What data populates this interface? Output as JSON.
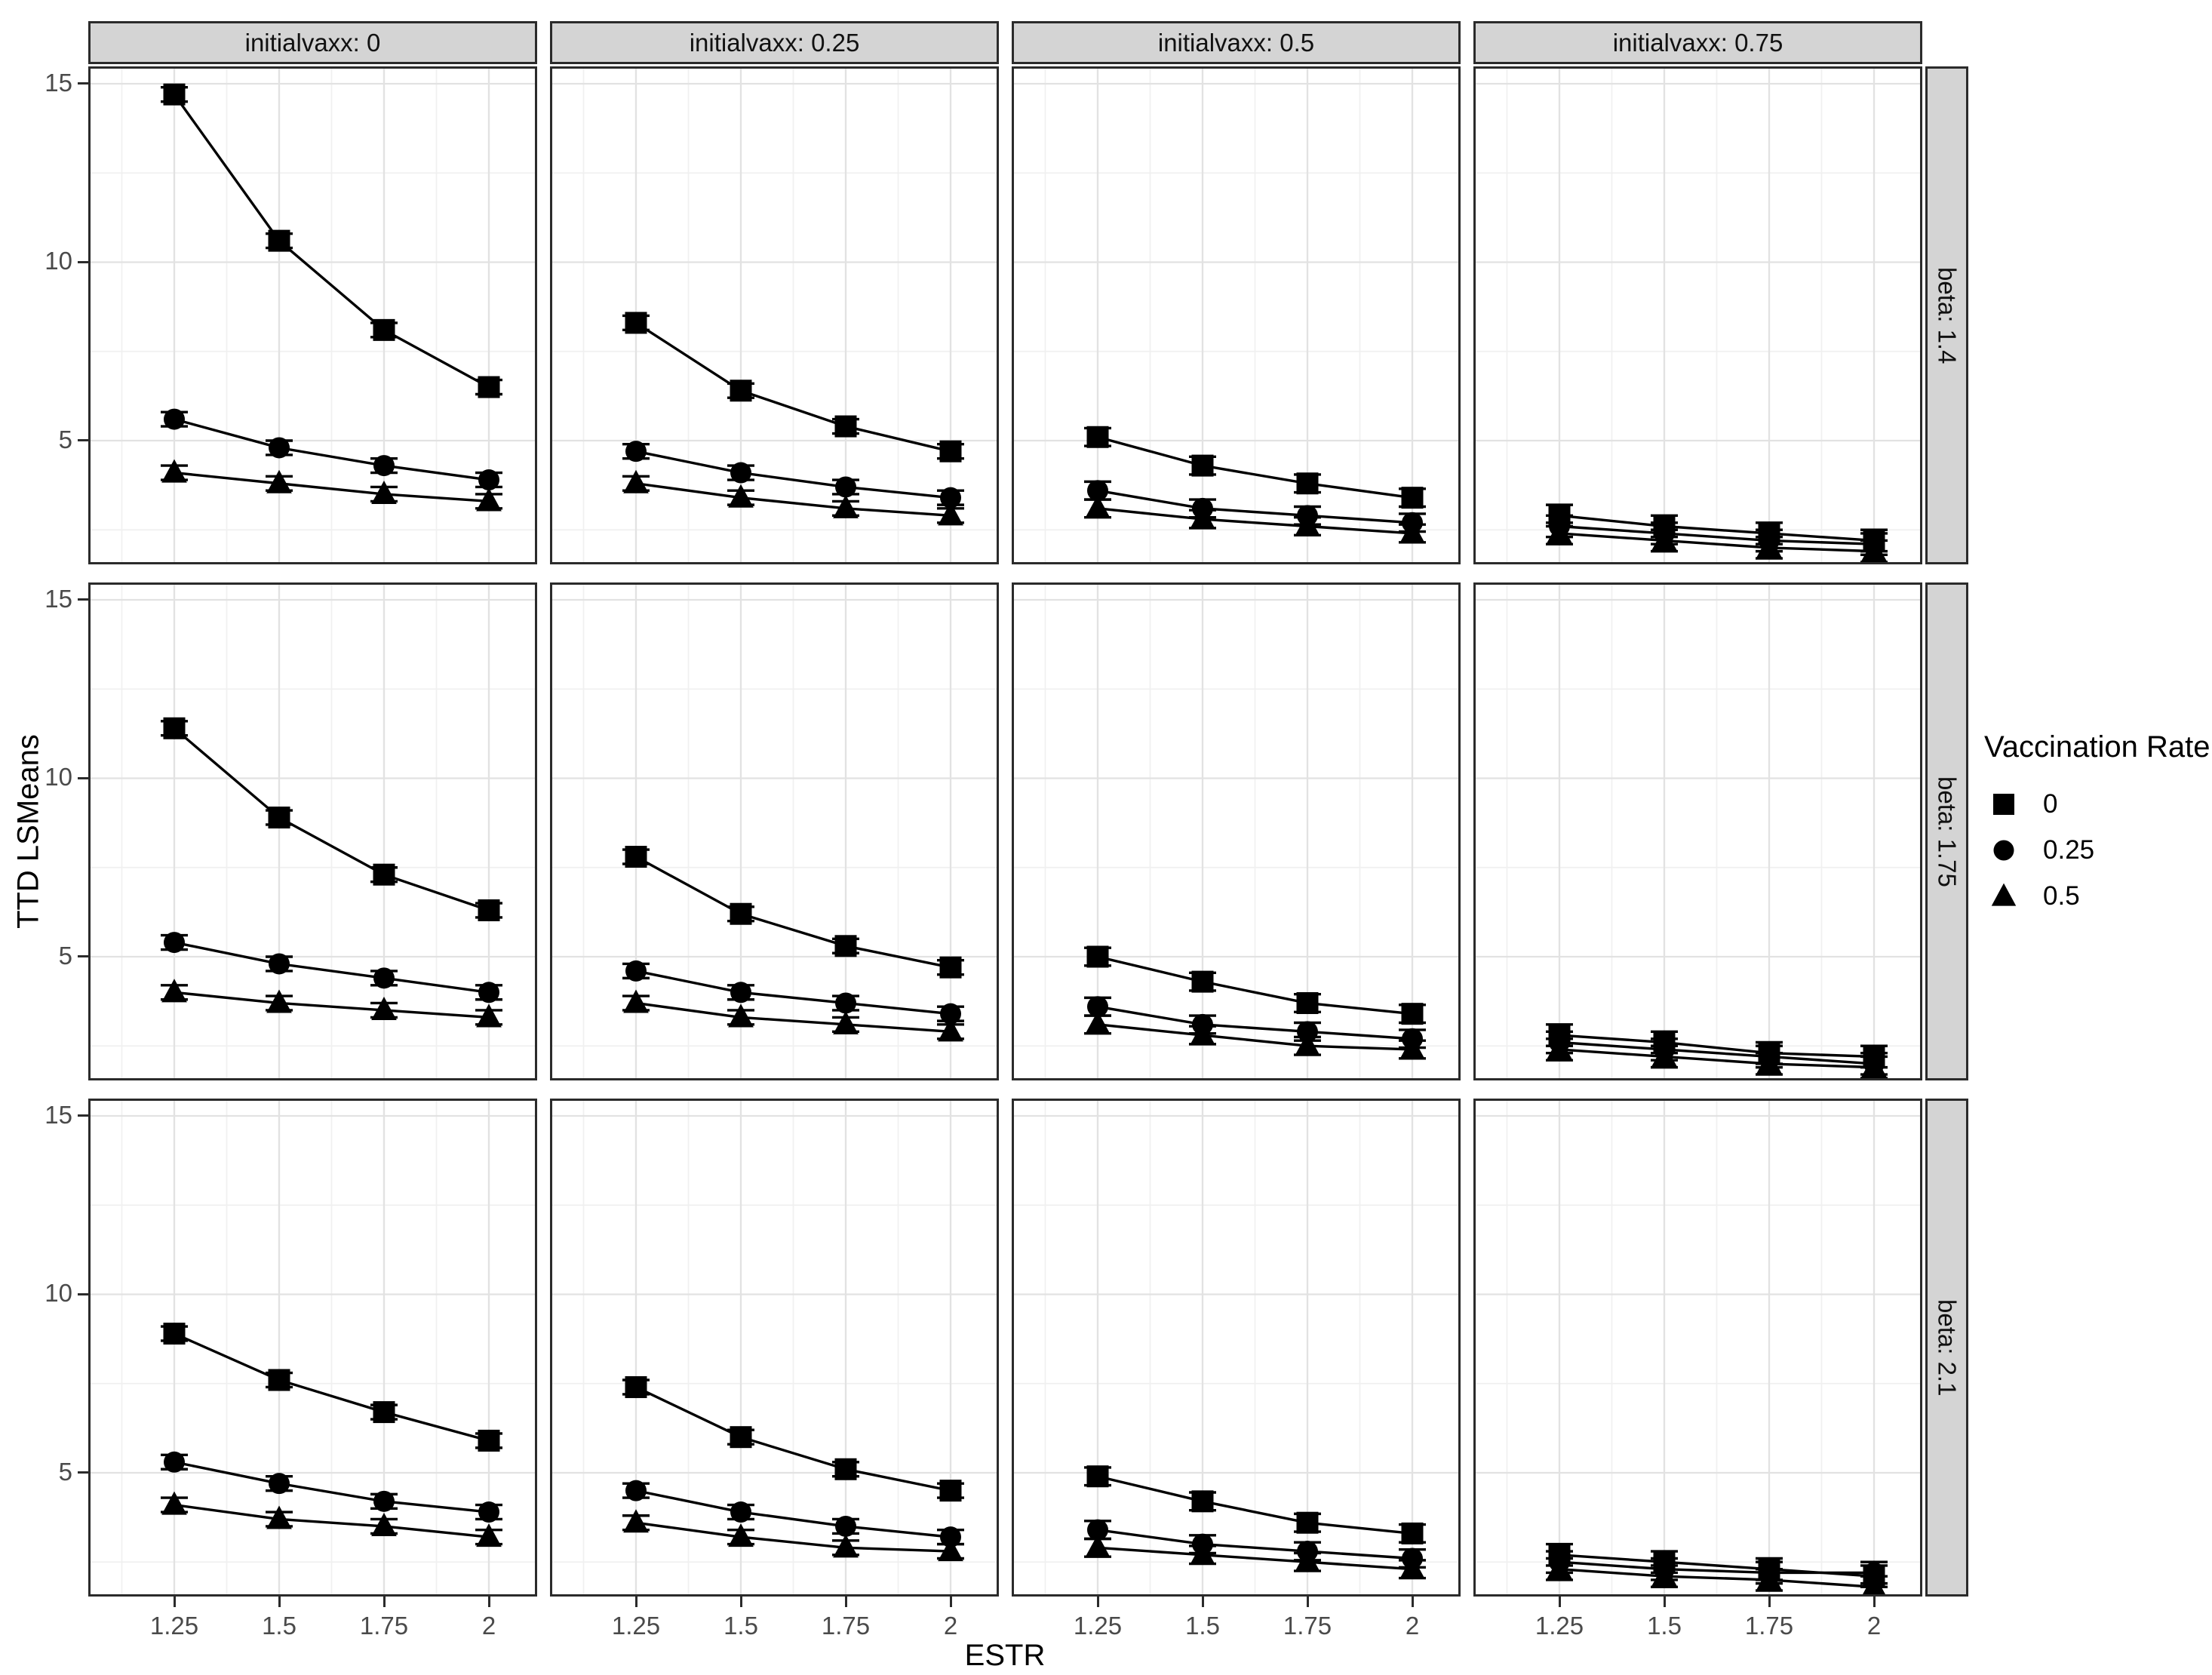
{
  "chart_data": {
    "type": "line",
    "title": "",
    "xlabel": "ESTR",
    "ylabel": "TTD LSMeans",
    "x": [
      1.25,
      1.5,
      1.75,
      2
    ],
    "x_tick_labels": [
      "1.25",
      "1.5",
      "1.75",
      "2"
    ],
    "y_ticks": [
      5,
      10,
      15
    ],
    "y_tick_labels": [
      "5",
      "10",
      "15"
    ],
    "ylim": [
      1.5,
      15.5
    ],
    "grid": true,
    "legend_position": "right",
    "legend": {
      "title": "Vaccination Rate",
      "entries": [
        {
          "marker": "square",
          "label": "0"
        },
        {
          "marker": "circle",
          "label": "0.25"
        },
        {
          "marker": "triangle",
          "label": "0.5"
        }
      ]
    },
    "facet_col_labels": [
      "initialvaxx: 0",
      "initialvaxx: 0.25",
      "initialvaxx: 0.5",
      "initialvaxx: 0.75"
    ],
    "facet_row_labels": [
      "beta: 1.4",
      "beta: 1.75",
      "beta: 2.1"
    ],
    "panels": [
      {
        "facet_row": "beta: 1.4",
        "facet_col": "initialvaxx: 0",
        "err": 0.2,
        "series": [
          {
            "label": "0",
            "marker": "square",
            "values": [
              14.7,
              10.6,
              8.1,
              6.5
            ]
          },
          {
            "label": "0.25",
            "marker": "circle",
            "values": [
              5.6,
              4.8,
              4.3,
              3.9
            ]
          },
          {
            "label": "0.5",
            "marker": "triangle",
            "values": [
              4.1,
              3.8,
              3.5,
              3.3
            ]
          }
        ]
      },
      {
        "facet_row": "beta: 1.4",
        "facet_col": "initialvaxx: 0.25",
        "err": 0.2,
        "series": [
          {
            "label": "0",
            "marker": "square",
            "values": [
              8.3,
              6.4,
              5.4,
              4.7
            ]
          },
          {
            "label": "0.25",
            "marker": "circle",
            "values": [
              4.7,
              4.1,
              3.7,
              3.4
            ]
          },
          {
            "label": "0.5",
            "marker": "triangle",
            "values": [
              3.8,
              3.4,
              3.1,
              2.9
            ]
          }
        ]
      },
      {
        "facet_row": "beta: 1.4",
        "facet_col": "initialvaxx: 0.5",
        "err": 0.25,
        "series": [
          {
            "label": "0",
            "marker": "square",
            "values": [
              5.1,
              4.3,
              3.8,
              3.4
            ]
          },
          {
            "label": "0.25",
            "marker": "circle",
            "values": [
              3.6,
              3.1,
              2.9,
              2.7
            ]
          },
          {
            "label": "0.5",
            "marker": "triangle",
            "values": [
              3.1,
              2.8,
              2.6,
              2.4
            ]
          }
        ]
      },
      {
        "facet_row": "beta: 1.4",
        "facet_col": "initialvaxx: 0.75",
        "err": 0.3,
        "series": [
          {
            "label": "0",
            "marker": "square",
            "values": [
              2.9,
              2.6,
              2.4,
              2.2
            ]
          },
          {
            "label": "0.25",
            "marker": "circle",
            "values": [
              2.6,
              2.4,
              2.2,
              2.1
            ]
          },
          {
            "label": "0.5",
            "marker": "triangle",
            "values": [
              2.4,
              2.2,
              2.0,
              1.9
            ]
          }
        ]
      },
      {
        "facet_row": "beta: 1.75",
        "facet_col": "initialvaxx: 0",
        "err": 0.2,
        "series": [
          {
            "label": "0",
            "marker": "square",
            "values": [
              11.4,
              8.9,
              7.3,
              6.3
            ]
          },
          {
            "label": "0.25",
            "marker": "circle",
            "values": [
              5.4,
              4.8,
              4.4,
              4.0
            ]
          },
          {
            "label": "0.5",
            "marker": "triangle",
            "values": [
              4.0,
              3.7,
              3.5,
              3.3
            ]
          }
        ]
      },
      {
        "facet_row": "beta: 1.75",
        "facet_col": "initialvaxx: 0.25",
        "err": 0.2,
        "series": [
          {
            "label": "0",
            "marker": "square",
            "values": [
              7.8,
              6.2,
              5.3,
              4.7
            ]
          },
          {
            "label": "0.25",
            "marker": "circle",
            "values": [
              4.6,
              4.0,
              3.7,
              3.4
            ]
          },
          {
            "label": "0.5",
            "marker": "triangle",
            "values": [
              3.7,
              3.3,
              3.1,
              2.9
            ]
          }
        ]
      },
      {
        "facet_row": "beta: 1.75",
        "facet_col": "initialvaxx: 0.5",
        "err": 0.25,
        "series": [
          {
            "label": "0",
            "marker": "square",
            "values": [
              5.0,
              4.3,
              3.7,
              3.4
            ]
          },
          {
            "label": "0.25",
            "marker": "circle",
            "values": [
              3.6,
              3.1,
              2.9,
              2.7
            ]
          },
          {
            "label": "0.5",
            "marker": "triangle",
            "values": [
              3.1,
              2.8,
              2.5,
              2.4
            ]
          }
        ]
      },
      {
        "facet_row": "beta: 1.75",
        "facet_col": "initialvaxx: 0.75",
        "err": 0.3,
        "series": [
          {
            "label": "0",
            "marker": "square",
            "values": [
              2.8,
              2.6,
              2.3,
              2.2
            ]
          },
          {
            "label": "0.25",
            "marker": "circle",
            "values": [
              2.6,
              2.4,
              2.2,
              2.0
            ]
          },
          {
            "label": "0.5",
            "marker": "triangle",
            "values": [
              2.4,
              2.2,
              2.0,
              1.9
            ]
          }
        ]
      },
      {
        "facet_row": "beta: 2.1",
        "facet_col": "initialvaxx: 0",
        "err": 0.2,
        "series": [
          {
            "label": "0",
            "marker": "square",
            "values": [
              8.9,
              7.6,
              6.7,
              5.9
            ]
          },
          {
            "label": "0.25",
            "marker": "circle",
            "values": [
              5.3,
              4.7,
              4.2,
              3.9
            ]
          },
          {
            "label": "0.5",
            "marker": "triangle",
            "values": [
              4.1,
              3.7,
              3.5,
              3.2
            ]
          }
        ]
      },
      {
        "facet_row": "beta: 2.1",
        "facet_col": "initialvaxx: 0.25",
        "err": 0.2,
        "series": [
          {
            "label": "0",
            "marker": "square",
            "values": [
              7.4,
              6.0,
              5.1,
              4.5
            ]
          },
          {
            "label": "0.25",
            "marker": "circle",
            "values": [
              4.5,
              3.9,
              3.5,
              3.2
            ]
          },
          {
            "label": "0.5",
            "marker": "triangle",
            "values": [
              3.6,
              3.2,
              2.9,
              2.8
            ]
          }
        ]
      },
      {
        "facet_row": "beta: 2.1",
        "facet_col": "initialvaxx: 0.5",
        "err": 0.25,
        "series": [
          {
            "label": "0",
            "marker": "square",
            "values": [
              4.9,
              4.2,
              3.6,
              3.3
            ]
          },
          {
            "label": "0.25",
            "marker": "circle",
            "values": [
              3.4,
              3.0,
              2.8,
              2.6
            ]
          },
          {
            "label": "0.5",
            "marker": "triangle",
            "values": [
              2.9,
              2.7,
              2.5,
              2.3
            ]
          }
        ]
      },
      {
        "facet_row": "beta: 2.1",
        "facet_col": "initialvaxx: 0.75",
        "err": 0.3,
        "series": [
          {
            "label": "0",
            "marker": "square",
            "values": [
              2.7,
              2.5,
              2.3,
              2.1
            ]
          },
          {
            "label": "0.25",
            "marker": "circle",
            "values": [
              2.5,
              2.3,
              2.2,
              2.2
            ]
          },
          {
            "label": "0.5",
            "marker": "triangle",
            "values": [
              2.3,
              2.1,
              2.0,
              1.8
            ]
          }
        ]
      }
    ]
  },
  "colors": {
    "background": "#ffffff",
    "strip_fill": "#d4d4d4",
    "panel_border": "#2b2b2b",
    "grid_major": "#e2e2e2",
    "grid_minor": "#f0f0f0",
    "tick_text": "#4a4a4a",
    "text": "#000000",
    "series": "#000000"
  }
}
